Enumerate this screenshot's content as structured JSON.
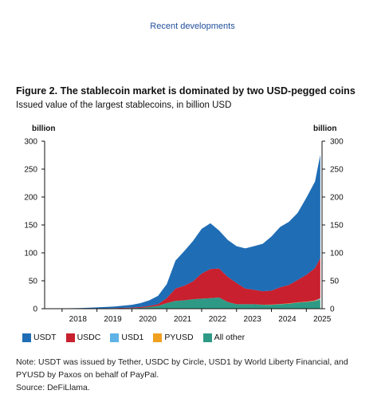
{
  "header": "Recent developments",
  "figure": {
    "title": "Figure 2. The stablecoin market is dominated by two USD-pegged coins",
    "subtitle": "Issued value of the largest stablecoins, in billion USD",
    "note": "Note: USDT was issued by Tether, USDC by Circle, USD1 by World Liberty Financial, and PYUSD by Paxos on behalf of PayPal.",
    "source": "Source: DeFiLlama."
  },
  "chart_data": {
    "type": "area",
    "stacked": true,
    "ylabel_left": "billion",
    "ylabel_right": "billion",
    "ylim": [
      0,
      300
    ],
    "yticks": [
      0,
      50,
      100,
      150,
      200,
      250,
      300
    ],
    "xticks": [
      "2018",
      "2019",
      "2020",
      "2021",
      "2022",
      "2023",
      "2024",
      "2025"
    ],
    "x": [
      2017.5,
      2018.0,
      2018.5,
      2019.0,
      2019.5,
      2020.0,
      2020.25,
      2020.5,
      2020.75,
      2021.0,
      2021.25,
      2021.5,
      2021.75,
      2022.0,
      2022.25,
      2022.5,
      2022.75,
      2023.0,
      2023.25,
      2023.5,
      2023.75,
      2024.0,
      2024.25,
      2024.5,
      2024.75,
      2025.0,
      2025.25,
      2025.4
    ],
    "series": [
      {
        "name": "All other",
        "color": "#2e9a86",
        "values": [
          0,
          0,
          0,
          0,
          0.5,
          1,
          1.5,
          3,
          5,
          10,
          14,
          15,
          17,
          18,
          19,
          20,
          12,
          8,
          8,
          8,
          7,
          7,
          8,
          9,
          11,
          12,
          14,
          16
        ]
      },
      {
        "name": "PYUSD",
        "color": "#f0a020",
        "values": [
          0,
          0,
          0,
          0,
          0,
          0,
          0,
          0,
          0,
          0,
          0,
          0,
          0,
          0,
          0,
          0,
          0,
          0,
          0,
          0,
          0.2,
          0.3,
          0.4,
          0.5,
          0.5,
          0.5,
          0.6,
          0.8
        ]
      },
      {
        "name": "USD1",
        "color": "#5fb3e6",
        "values": [
          0,
          0,
          0,
          0,
          0,
          0,
          0,
          0,
          0,
          0,
          0,
          0,
          0,
          0,
          0,
          0,
          0,
          0,
          0,
          0,
          0,
          0,
          0,
          0,
          0,
          0,
          0.3,
          2
        ]
      },
      {
        "name": "USDC",
        "color": "#c8202e",
        "values": [
          0,
          0,
          0,
          0.3,
          0.5,
          1,
          1.5,
          2,
          3,
          9,
          22,
          26,
          32,
          45,
          52,
          52,
          45,
          38,
          28,
          26,
          24,
          25,
          30,
          33,
          40,
          48,
          58,
          72
        ]
      },
      {
        "name": "USDT",
        "color": "#1f6db5",
        "values": [
          0,
          0.5,
          1,
          2,
          3,
          5,
          7,
          10,
          15,
          25,
          50,
          62,
          72,
          80,
          82,
          68,
          66,
          66,
          72,
          78,
          85,
          97,
          108,
          113,
          120,
          138,
          155,
          185
        ]
      }
    ]
  }
}
